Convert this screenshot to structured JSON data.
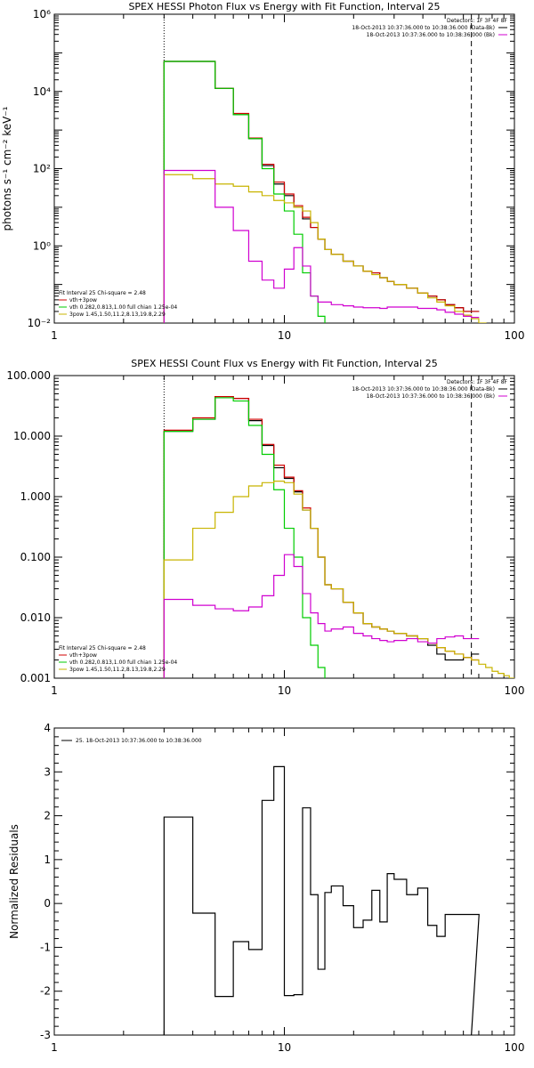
{
  "chart_data": [
    {
      "type": "line",
      "title": "SPEX HESSI Photon Flux vs Energy with Fit Function, Interval 25",
      "xlabel": "",
      "ylabel": "photons s⁻¹ cm⁻² keV⁻¹",
      "xscale": "log",
      "yscale": "log",
      "xlim": [
        1,
        100
      ],
      "ylim": [
        0.01,
        1000000
      ],
      "xticks": [
        {
          "v": 1,
          "label": "1"
        },
        {
          "v": 10,
          "label": "10"
        },
        {
          "v": 100,
          "label": "100"
        }
      ],
      "yticks": [
        {
          "v": 0.01,
          "label": "10⁻²"
        },
        {
          "v": 1,
          "label": "10⁰"
        },
        {
          "v": 100,
          "label": "10²"
        },
        {
          "v": 10000,
          "label": "10⁴"
        },
        {
          "v": 1000000,
          "label": "10⁶"
        }
      ],
      "vlines": [
        {
          "x": 3,
          "style": "dotted"
        },
        {
          "x": 65,
          "style": "dashed"
        }
      ],
      "legend_top_right": [
        {
          "text": "Detectors: 1F 3F 4F 8F",
          "color": "#000000"
        },
        {
          "text": "18-Oct-2013 10:37:36.000 to 10:38:36.000 (Data-Bk)",
          "color": "#000000"
        },
        {
          "text": "18-Oct-2013 10:37:36.000 to 10:38:36.000 (Bk)",
          "color": "#d000d0"
        }
      ],
      "legend_bottom_left": [
        {
          "text": "Fit Interval 25   Chi-square = 2.48",
          "color": "#000000"
        },
        {
          "text": "vth+3pow",
          "color": "#d00000"
        },
        {
          "text": "vth 0.282,0.813,1.00  full chian 1.25e-04",
          "color": "#00cc00"
        },
        {
          "text": "3pow 1.45,1.50,11.2,8.13,19.8,2.29",
          "color": "#c8b400"
        }
      ],
      "series": [
        {
          "name": "Data-Bk",
          "color": "#000000",
          "x": [
            3,
            4,
            5,
            6,
            7,
            8,
            9,
            10,
            11,
            12,
            13,
            14,
            15,
            16,
            18,
            20,
            22,
            24,
            26,
            28,
            30,
            34,
            38,
            42,
            46,
            50,
            55,
            60,
            65
          ],
          "y": [
            60000,
            60000,
            12000,
            2500,
            600,
            120,
            40,
            20,
            10,
            5,
            3,
            1.5,
            0.8,
            0.6,
            0.4,
            0.3,
            0.22,
            0.2,
            0.15,
            0.12,
            0.1,
            0.08,
            0.06,
            0.05,
            0.04,
            0.03,
            0.025,
            0.02,
            0.02
          ]
        },
        {
          "name": "vth+3pow",
          "color": "#d00000",
          "x": [
            3,
            4,
            5,
            6,
            7,
            8,
            9,
            10,
            11,
            12,
            13,
            14,
            15,
            16,
            18,
            20,
            22,
            24,
            26,
            28,
            30,
            34,
            38,
            42,
            46,
            50,
            55,
            60,
            65
          ],
          "y": [
            60000,
            60000,
            12000,
            2700,
            620,
            130,
            45,
            22,
            11,
            5.5,
            3,
            1.5,
            0.8,
            0.6,
            0.4,
            0.3,
            0.22,
            0.2,
            0.15,
            0.12,
            0.1,
            0.08,
            0.06,
            0.05,
            0.04,
            0.03,
            0.025,
            0.02,
            0.02
          ]
        },
        {
          "name": "vth",
          "color": "#00cc00",
          "x": [
            3,
            4,
            5,
            6,
            7,
            8,
            9,
            10,
            11,
            12,
            13,
            14,
            15
          ],
          "y": [
            60000,
            60000,
            12000,
            2500,
            600,
            100,
            22,
            8,
            2,
            0.2,
            0.05,
            0.015,
            0.008
          ]
        },
        {
          "name": "3pow",
          "color": "#c8b400",
          "x": [
            3,
            4,
            5,
            6,
            7,
            8,
            9,
            10,
            11,
            12,
            13,
            14,
            15,
            16,
            18,
            20,
            22,
            24,
            26,
            28,
            30,
            34,
            38,
            42,
            46,
            50,
            55,
            60,
            65,
            70
          ],
          "y": [
            70,
            55,
            40,
            35,
            25,
            20,
            15,
            13,
            10,
            8,
            4,
            1.5,
            0.8,
            0.6,
            0.4,
            0.3,
            0.22,
            0.18,
            0.15,
            0.12,
            0.1,
            0.08,
            0.06,
            0.045,
            0.035,
            0.028,
            0.02,
            0.016,
            0.013,
            0.01
          ]
        },
        {
          "name": "Bk",
          "color": "#d000d0",
          "x": [
            3,
            4,
            5,
            6,
            7,
            8,
            9,
            10,
            11,
            12,
            13,
            14,
            15,
            16,
            18,
            20,
            22,
            24,
            26,
            28,
            30,
            34,
            38,
            42,
            46,
            50,
            55,
            60,
            65
          ],
          "y": [
            90,
            90,
            10,
            2.5,
            0.4,
            0.13,
            0.08,
            0.25,
            0.9,
            0.3,
            0.05,
            0.035,
            0.035,
            0.03,
            0.028,
            0.026,
            0.025,
            0.025,
            0.024,
            0.026,
            0.026,
            0.026,
            0.024,
            0.024,
            0.022,
            0.019,
            0.017,
            0.015,
            0.014
          ]
        }
      ]
    },
    {
      "type": "line",
      "title": "SPEX HESSI Count Flux vs Energy with Fit Function, Interval 25",
      "xlabel": "",
      "ylabel": "",
      "xscale": "log",
      "yscale": "log",
      "xlim": [
        1,
        100
      ],
      "ylim": [
        0.001,
        100
      ],
      "xticks": [
        {
          "v": 1,
          "label": "1"
        },
        {
          "v": 10,
          "label": "10"
        },
        {
          "v": 100,
          "label": "100"
        }
      ],
      "yticks": [
        {
          "v": 0.001,
          "label": "0.001"
        },
        {
          "v": 0.01,
          "label": "0.010"
        },
        {
          "v": 0.1,
          "label": "0.100"
        },
        {
          "v": 1,
          "label": "1.000"
        },
        {
          "v": 10,
          "label": "10.000"
        },
        {
          "v": 100,
          "label": "100.000"
        }
      ],
      "vlines": [
        {
          "x": 3,
          "style": "dotted"
        },
        {
          "x": 65,
          "style": "dashed"
        }
      ],
      "legend_top_right": [
        {
          "text": "Detectors: 1F 3F 4F 8F",
          "color": "#000000"
        },
        {
          "text": "18-Oct-2013 10:37:36.000 to 10:38:36.000 (Data-Bk)",
          "color": "#000000"
        },
        {
          "text": "18-Oct-2013 10:37:36.000 to 10:38:36.000 (Bk)",
          "color": "#d000d0"
        }
      ],
      "legend_bottom_left": [
        {
          "text": "Fit Interval 25   Chi-square = 2.48",
          "color": "#000000"
        },
        {
          "text": "vth+3pow",
          "color": "#d00000"
        },
        {
          "text": "vth 0.282,0.813,1.00  full chian 1.25e-04",
          "color": "#00cc00"
        },
        {
          "text": "3pow 1.45,1.50,11.2,8.13,19.8,2.29",
          "color": "#c8b400"
        }
      ],
      "series": [
        {
          "name": "Data-Bk",
          "color": "#000000",
          "x": [
            3,
            4,
            5,
            6,
            7,
            8,
            9,
            10,
            11,
            12,
            13,
            14,
            15,
            16,
            18,
            20,
            22,
            24,
            26,
            28,
            30,
            34,
            38,
            42,
            46,
            50,
            55,
            60,
            65
          ],
          "y": [
            12,
            19,
            45,
            42,
            18,
            7,
            3,
            2,
            1.2,
            0.6,
            0.3,
            0.1,
            0.035,
            0.03,
            0.018,
            0.012,
            0.008,
            0.007,
            0.0065,
            0.006,
            0.0055,
            0.005,
            0.0045,
            0.0035,
            0.0025,
            0.002,
            0.002,
            0.0022,
            0.0025
          ]
        },
        {
          "name": "vth+3pow",
          "color": "#d00000",
          "x": [
            3,
            4,
            5,
            6,
            7,
            8,
            9,
            10,
            11,
            12,
            13,
            14,
            15,
            16,
            18,
            20,
            22,
            24,
            26,
            28,
            30,
            34,
            38,
            42,
            46,
            50,
            55,
            60,
            65
          ],
          "y": [
            12.5,
            20,
            45,
            42,
            19,
            7.3,
            3.3,
            2.1,
            1.25,
            0.65,
            0.3,
            0.1,
            0.035,
            0.03,
            0.018,
            0.012,
            0.008,
            0.007,
            0.0065,
            0.006,
            0.0055,
            0.005,
            0.0045,
            0.0038,
            0.0032,
            0.0028,
            0.0025,
            0.0022,
            0.002
          ]
        },
        {
          "name": "vth",
          "color": "#00cc00",
          "x": [
            3,
            4,
            5,
            6,
            7,
            8,
            9,
            10,
            11,
            12,
            13,
            14,
            15
          ],
          "y": [
            12,
            19,
            43,
            38,
            15,
            5,
            1.3,
            0.3,
            0.1,
            0.01,
            0.0035,
            0.0015,
            0.0006
          ]
        },
        {
          "name": "3pow",
          "color": "#c8b400",
          "x": [
            3,
            4,
            5,
            6,
            7,
            8,
            9,
            10,
            11,
            12,
            13,
            14,
            15,
            16,
            18,
            20,
            22,
            24,
            26,
            28,
            30,
            34,
            38,
            42,
            46,
            50,
            55,
            60,
            65,
            70,
            75,
            80,
            85,
            90,
            95
          ],
          "y": [
            0.09,
            0.3,
            0.55,
            1.0,
            1.5,
            1.7,
            1.8,
            1.7,
            1.1,
            0.6,
            0.3,
            0.1,
            0.035,
            0.03,
            0.018,
            0.012,
            0.008,
            0.007,
            0.0065,
            0.006,
            0.0055,
            0.005,
            0.0045,
            0.0038,
            0.0032,
            0.0028,
            0.0025,
            0.0022,
            0.002,
            0.0017,
            0.0015,
            0.0013,
            0.0012,
            0.0011,
            0.001
          ]
        },
        {
          "name": "Bk",
          "color": "#d000d0",
          "x": [
            3,
            4,
            5,
            6,
            7,
            8,
            9,
            10,
            11,
            12,
            13,
            14,
            15,
            16,
            18,
            20,
            22,
            24,
            26,
            28,
            30,
            34,
            38,
            42,
            46,
            50,
            55,
            60,
            65
          ],
          "y": [
            0.02,
            0.016,
            0.014,
            0.013,
            0.015,
            0.023,
            0.05,
            0.11,
            0.07,
            0.025,
            0.012,
            0.008,
            0.006,
            0.0065,
            0.007,
            0.0055,
            0.005,
            0.0045,
            0.0042,
            0.004,
            0.0042,
            0.0045,
            0.004,
            0.0038,
            0.0045,
            0.0048,
            0.005,
            0.0045,
            0.0045
          ]
        }
      ]
    },
    {
      "type": "line",
      "title": "",
      "xlabel": "",
      "ylabel": "Normalized Residuals",
      "xscale": "log",
      "yscale": "linear",
      "xlim": [
        1,
        100
      ],
      "ylim": [
        -3,
        4
      ],
      "xticks": [
        {
          "v": 1,
          "label": "1"
        },
        {
          "v": 10,
          "label": "10"
        },
        {
          "v": 100,
          "label": "100"
        }
      ],
      "yticks": [
        {
          "v": -3,
          "label": "-3"
        },
        {
          "v": -2,
          "label": "-2"
        },
        {
          "v": -1,
          "label": "-1"
        },
        {
          "v": 0,
          "label": "0"
        },
        {
          "v": 1,
          "label": "1"
        },
        {
          "v": 2,
          "label": "2"
        },
        {
          "v": 3,
          "label": "3"
        },
        {
          "v": 4,
          "label": "4"
        }
      ],
      "legend": [
        {
          "text": "25. 18-Oct-2013 10:37:36.000 to 10:38:36.000",
          "color": "#000000"
        }
      ],
      "series": [
        {
          "name": "",
          "color": "#000000",
          "x": [
            3,
            4,
            5,
            6,
            7,
            8,
            9,
            10,
            11,
            12,
            13,
            14,
            15,
            16,
            18,
            20,
            22,
            24,
            26,
            28,
            30,
            34,
            38,
            42,
            46,
            50,
            55,
            60,
            65
          ],
          "y": [
            1.97,
            -0.22,
            -2.12,
            -0.87,
            -1.05,
            2.35,
            3.12,
            -2.1,
            -2.08,
            2.18,
            0.2,
            -1.5,
            0.25,
            0.4,
            -0.05,
            -0.55,
            -0.38,
            0.3,
            -0.42,
            0.68,
            0.55,
            0.2,
            0.35,
            -0.5,
            -0.75,
            -0.25,
            -0.25,
            -0.25,
            -0.25
          ]
        }
      ]
    }
  ]
}
